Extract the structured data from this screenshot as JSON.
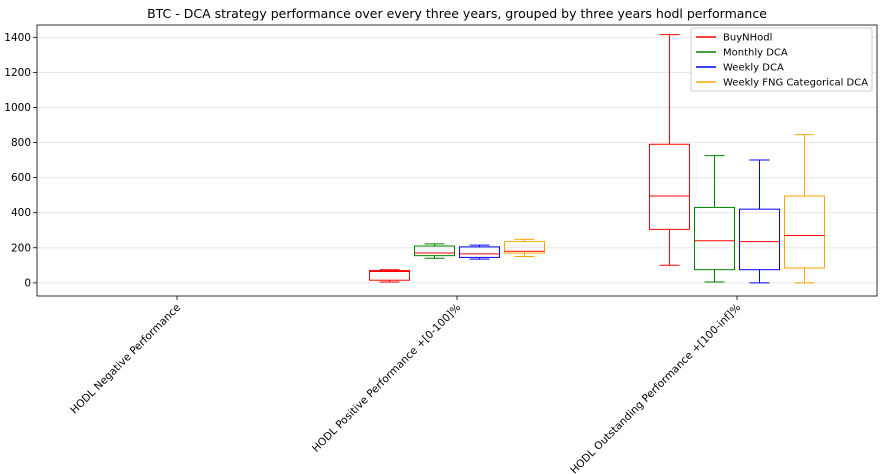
{
  "chart_data": {
    "type": "box",
    "title": "BTC - DCA strategy performance over every three years, grouped by three years hodl performance",
    "xlabel": "",
    "ylabel": "",
    "ylim": [
      -75,
      1470
    ],
    "yticks": [
      0,
      200,
      400,
      600,
      800,
      1000,
      1200,
      1400
    ],
    "grid": "horizontal",
    "legend_position": "top-right",
    "categories": [
      "HODL Negative Performance",
      "HODL Positive Performance +[0-100]%",
      "HODL Outstanding Performance +[100-inf]%"
    ],
    "series": [
      {
        "name": "BuyNHodl",
        "color": "#ff0000",
        "boxes": [
          null,
          {
            "whislo": 5,
            "q1": 15,
            "med": 65,
            "q3": 70,
            "whishi": 75
          },
          {
            "whislo": 100,
            "q1": 305,
            "med": 495,
            "q3": 790,
            "whishi": 1415
          }
        ]
      },
      {
        "name": "Monthly DCA",
        "color": "#008000",
        "boxes": [
          null,
          {
            "whislo": 140,
            "q1": 155,
            "med": 170,
            "q3": 210,
            "whishi": 222
          },
          {
            "whislo": 5,
            "q1": 75,
            "med": 240,
            "q3": 430,
            "whishi": 725
          }
        ]
      },
      {
        "name": "Weekly DCA",
        "color": "#0000ff",
        "boxes": [
          null,
          {
            "whislo": 135,
            "q1": 145,
            "med": 165,
            "q3": 205,
            "whishi": 215
          },
          {
            "whislo": 0,
            "q1": 75,
            "med": 235,
            "q3": 420,
            "whishi": 700
          }
        ]
      },
      {
        "name": "Weekly FNG Categorical DCA",
        "color": "#ffa500",
        "boxes": [
          null,
          {
            "whislo": 150,
            "q1": 170,
            "med": 180,
            "q3": 235,
            "whishi": 248
          },
          {
            "whislo": 0,
            "q1": 85,
            "med": 270,
            "q3": 495,
            "whishi": 845
          }
        ]
      }
    ],
    "median_color": "#ff0000"
  }
}
